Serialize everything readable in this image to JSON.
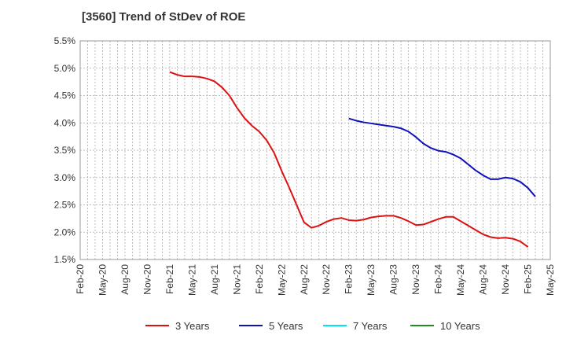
{
  "chart_data": {
    "type": "line",
    "title": "[3560]  Trend of StDev of ROE",
    "xlabel": "",
    "ylabel": "",
    "ylim": [
      1.5,
      5.5
    ],
    "y_ticks": [
      "5.5%",
      "5.0%",
      "4.5%",
      "4.0%",
      "3.5%",
      "3.0%",
      "2.5%",
      "2.0%",
      "1.5%"
    ],
    "x_ticks": [
      "Feb-20",
      "May-20",
      "Aug-20",
      "Nov-20",
      "Feb-21",
      "May-21",
      "Aug-21",
      "Nov-21",
      "Feb-22",
      "May-22",
      "Aug-22",
      "Nov-22",
      "Feb-23",
      "May-23",
      "Aug-23",
      "Nov-23",
      "Feb-24",
      "May-24",
      "Aug-24",
      "Nov-24",
      "Feb-25",
      "May-25"
    ],
    "grid": true,
    "legend_position": "bottom",
    "series": [
      {
        "name": "3 Years",
        "color": "#dd1111",
        "points": [
          [
            12,
            4.93
          ],
          [
            13,
            4.88
          ],
          [
            14,
            4.85
          ],
          [
            15,
            4.85
          ],
          [
            16,
            4.84
          ],
          [
            17,
            4.81
          ],
          [
            18,
            4.76
          ],
          [
            19,
            4.65
          ],
          [
            20,
            4.5
          ],
          [
            21,
            4.28
          ],
          [
            22,
            4.09
          ],
          [
            23,
            3.95
          ],
          [
            24,
            3.84
          ],
          [
            25,
            3.68
          ],
          [
            26,
            3.45
          ],
          [
            27,
            3.12
          ],
          [
            28,
            2.82
          ],
          [
            29,
            2.5
          ],
          [
            30,
            2.18
          ],
          [
            31,
            2.08
          ],
          [
            32,
            2.12
          ],
          [
            33,
            2.19
          ],
          [
            34,
            2.24
          ],
          [
            35,
            2.26
          ],
          [
            36,
            2.22
          ],
          [
            37,
            2.21
          ],
          [
            38,
            2.23
          ],
          [
            39,
            2.27
          ],
          [
            40,
            2.29
          ],
          [
            41,
            2.3
          ],
          [
            42,
            2.3
          ],
          [
            43,
            2.26
          ],
          [
            44,
            2.2
          ],
          [
            45,
            2.13
          ],
          [
            46,
            2.14
          ],
          [
            47,
            2.19
          ],
          [
            48,
            2.24
          ],
          [
            49,
            2.28
          ],
          [
            50,
            2.28
          ],
          [
            51,
            2.2
          ],
          [
            52,
            2.12
          ],
          [
            53,
            2.04
          ],
          [
            54,
            1.96
          ],
          [
            55,
            1.91
          ],
          [
            56,
            1.89
          ],
          [
            57,
            1.9
          ],
          [
            58,
            1.88
          ],
          [
            59,
            1.83
          ],
          [
            60,
            1.73
          ]
        ]
      },
      {
        "name": "5 Years",
        "color": "#1111bb",
        "points": [
          [
            36,
            4.08
          ],
          [
            37,
            4.04
          ],
          [
            38,
            4.01
          ],
          [
            39,
            3.99
          ],
          [
            40,
            3.97
          ],
          [
            41,
            3.95
          ],
          [
            42,
            3.93
          ],
          [
            43,
            3.9
          ],
          [
            44,
            3.84
          ],
          [
            45,
            3.74
          ],
          [
            46,
            3.62
          ],
          [
            47,
            3.54
          ],
          [
            48,
            3.49
          ],
          [
            49,
            3.47
          ],
          [
            50,
            3.42
          ],
          [
            51,
            3.35
          ],
          [
            52,
            3.24
          ],
          [
            53,
            3.13
          ],
          [
            54,
            3.04
          ],
          [
            55,
            2.97
          ],
          [
            56,
            2.97
          ],
          [
            57,
            3.0
          ],
          [
            58,
            2.98
          ],
          [
            59,
            2.92
          ],
          [
            60,
            2.81
          ],
          [
            61,
            2.65
          ]
        ]
      },
      {
        "name": "7 Years",
        "color": "#00e5ee",
        "points": []
      },
      {
        "name": "10 Years",
        "color": "#228b22",
        "points": []
      }
    ]
  }
}
